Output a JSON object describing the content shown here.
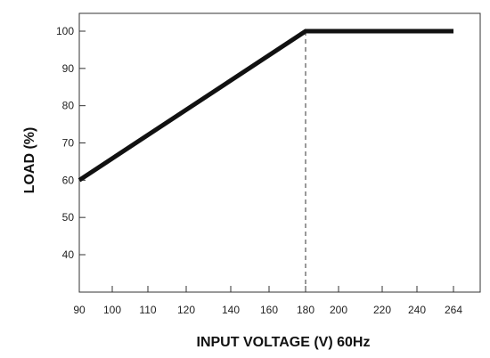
{
  "chart_data": {
    "type": "line",
    "xlabel": "INPUT VOLTAGE (V) 60Hz",
    "ylabel": "LOAD (%)",
    "x_ticks": [
      90,
      100,
      110,
      120,
      140,
      160,
      180,
      200,
      220,
      240,
      264
    ],
    "y_ticks": [
      40,
      50,
      60,
      70,
      80,
      90,
      100
    ],
    "xlim": [
      90,
      264
    ],
    "ylim": [
      30,
      104
    ],
    "grid": false,
    "series": [
      {
        "x": [
          90,
          180,
          264
        ],
        "y": [
          60,
          100,
          100
        ],
        "color": "#111111"
      }
    ],
    "reference_lines": [
      {
        "orientation": "vertical",
        "x": 180,
        "y_from": 30,
        "y_to": 100,
        "style": "dashed"
      }
    ]
  }
}
